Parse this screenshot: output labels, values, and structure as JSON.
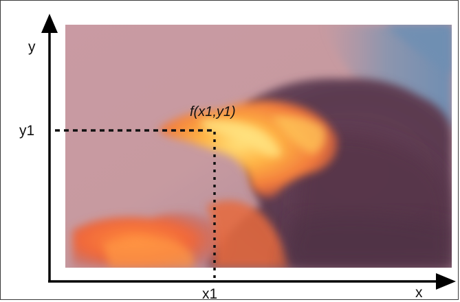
{
  "axes": {
    "x_label": "x",
    "y_label": "y",
    "x1_label": "x1",
    "y1_label": "y1"
  },
  "point": {
    "function_label": "f(x1,y1)"
  },
  "colors": {
    "axis": "#000000",
    "sky_top": "#caa0a4",
    "sky_blue": "#7d93ad",
    "cloud_dark": "#5f3d52",
    "cloud_glow": "#ffb24a",
    "cloud_orange": "#ef7038",
    "frame": "#3a3a3a"
  },
  "icons": {
    "y_axis_arrow": "arrow-up-icon",
    "x_axis_arrow": "arrow-right-icon"
  }
}
